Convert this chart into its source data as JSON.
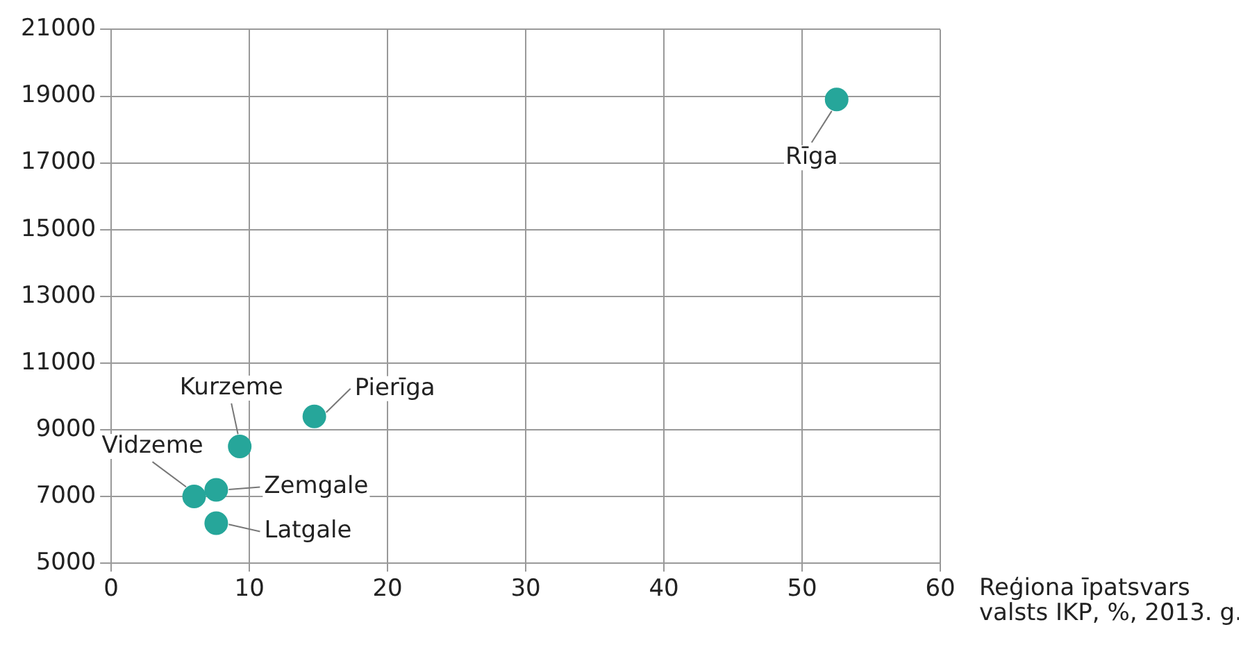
{
  "chart_data": {
    "type": "scatter",
    "xlabel": "Reģiona īpatsvars valsts IKP, %, 2013. g.",
    "x": [
      52.5,
      14.7,
      9.3,
      7.6,
      6.0,
      7.6
    ],
    "series": [
      {
        "color": "#26a69a",
        "values": [
          18900,
          9400,
          8500,
          7200,
          7000,
          6200
        ]
      }
    ],
    "xlim": [
      0,
      60
    ],
    "xticks": [
      0,
      10,
      20,
      30,
      40,
      50,
      60
    ],
    "ylim": [
      5000,
      21000
    ],
    "yticks": [
      5000,
      7000,
      9000,
      11000,
      13000,
      15000,
      17000,
      19000,
      21000
    ],
    "grid": true,
    "legend": false,
    "marker": "circle",
    "annotations": [
      {
        "text": "Rīga",
        "x": 52.5,
        "y": 18900
      },
      {
        "text": "Pierīga",
        "x": 14.7,
        "y": 9400
      },
      {
        "text": "Kurzeme",
        "x": 9.3,
        "y": 8500
      },
      {
        "text": "Zemgale",
        "x": 7.6,
        "y": 7200
      },
      {
        "text": "Vidzeme",
        "x": 6.0,
        "y": 7000
      },
      {
        "text": "Latgale",
        "x": 7.6,
        "y": 6200
      }
    ]
  }
}
